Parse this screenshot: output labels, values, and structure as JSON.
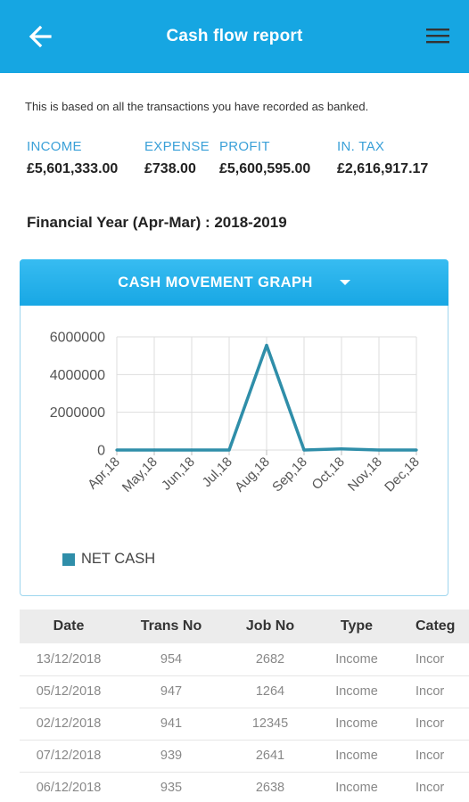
{
  "header": {
    "title": "Cash flow report",
    "back_icon": "arrow-left-icon",
    "menu_icon": "hamburger-menu-icon",
    "color": "#16a6e2"
  },
  "note": "This is based on all the transactions you have recorded as banked.",
  "stats": [
    {
      "label": "INCOME",
      "value": "£5,601,333.00"
    },
    {
      "label": "EXPENSE",
      "value": "£738.00"
    },
    {
      "label": "PROFIT",
      "value": "£5,600,595.00"
    },
    {
      "label": "IN. TAX",
      "value": "£2,616,917.17"
    }
  ],
  "financial_year": "Financial Year (Apr-Mar) : 2018-2019",
  "graph": {
    "header": "CASH MOVEMENT GRAPH",
    "dropdown_icon": "caret-down-icon",
    "legend": "NET CASH"
  },
  "chart_data": {
    "type": "line",
    "categories": [
      "Apr,18",
      "May,18",
      "Jun,18",
      "Jul,18",
      "Aug,18",
      "Sep,18",
      "Oct,18",
      "Nov,18",
      "Dec,18"
    ],
    "series": [
      {
        "name": "NET CASH",
        "color": "#2f8ea9",
        "values": [
          0,
          0,
          0,
          0,
          5550000,
          0,
          60000,
          0,
          0
        ]
      }
    ],
    "yticks": [
      0,
      2000000,
      4000000,
      6000000
    ],
    "ylim": [
      0,
      6000000
    ],
    "grid": true,
    "legend_position": "bottom-left"
  },
  "table": {
    "columns": [
      "Date",
      "Trans No",
      "Job No",
      "Type",
      "Categ"
    ],
    "rows": [
      [
        "13/12/2018",
        "954",
        "2682",
        "Income",
        "Incor"
      ],
      [
        "05/12/2018",
        "947",
        "1264",
        "Income",
        "Incor"
      ],
      [
        "02/12/2018",
        "941",
        "12345",
        "Income",
        "Incor"
      ],
      [
        "07/12/2018",
        "939",
        "2641",
        "Income",
        "Incor"
      ],
      [
        "06/12/2018",
        "935",
        "2638",
        "Income",
        "Incor"
      ]
    ]
  }
}
